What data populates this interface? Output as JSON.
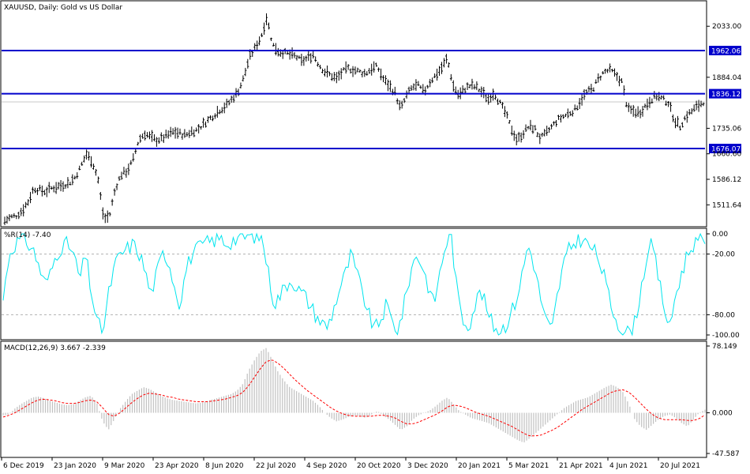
{
  "chart_data": [
    {
      "type": "line",
      "panel": "price",
      "title": "XAUUSD, Daily: Gold vs US Dollar",
      "instrument": "XAUUSD",
      "timeframe": "Daily",
      "description": "Gold vs US Dollar",
      "ylim": [
        1450,
        2105
      ],
      "ytick_labels": [
        "2033.00",
        "1884.04",
        "1735.06",
        "1660.60",
        "1586.12",
        "1511.64"
      ],
      "ytick_values": [
        2033.0,
        1884.04,
        1735.06,
        1660.6,
        1586.12,
        1511.64
      ],
      "horizontal_levels": [
        {
          "label": "1962.06",
          "value": 1962.06,
          "color": "#0000cc"
        },
        {
          "label": "1836.12",
          "value": 1836.12,
          "color": "#0000cc"
        },
        {
          "label": "1676.07",
          "value": 1676.07,
          "color": "#0000cc"
        }
      ],
      "last_price": 1812.0,
      "x_dates": [
        "6 Dec 2019",
        "23 Jan 2020",
        "9 Mar 2020",
        "23 Apr 2020",
        "8 Jun 2020",
        "22 Jul 2020",
        "4 Sep 2020",
        "20 Oct 2020",
        "3 Dec 2020",
        "20 Jan 2021",
        "5 Mar 2021",
        "21 Apr 2021",
        "4 Jun 2021",
        "20 Jul 2021"
      ],
      "close_path": [
        1465,
        1475,
        1480,
        1495,
        1520,
        1560,
        1555,
        1550,
        1560,
        1565,
        1570,
        1575,
        1590,
        1620,
        1660,
        1640,
        1590,
        1470,
        1480,
        1560,
        1600,
        1610,
        1640,
        1700,
        1720,
        1710,
        1700,
        1705,
        1715,
        1725,
        1720,
        1715,
        1725,
        1730,
        1745,
        1760,
        1775,
        1790,
        1800,
        1820,
        1840,
        1880,
        1940,
        1970,
        2000,
        2060,
        1980,
        1960,
        1955,
        1950,
        1945,
        1930,
        1940,
        1950,
        1920,
        1900,
        1890,
        1880,
        1900,
        1910,
        1905,
        1900,
        1895,
        1910,
        1915,
        1880,
        1860,
        1840,
        1790,
        1830,
        1855,
        1860,
        1840,
        1870,
        1890,
        1910,
        1940,
        1860,
        1830,
        1850,
        1860,
        1855,
        1840,
        1820,
        1840,
        1810,
        1780,
        1735,
        1700,
        1720,
        1740,
        1735,
        1705,
        1720,
        1740,
        1760,
        1770,
        1780,
        1790,
        1820,
        1840,
        1850,
        1880,
        1900,
        1905,
        1890,
        1870,
        1790,
        1785,
        1780,
        1800,
        1820,
        1830,
        1820,
        1810,
        1760,
        1740,
        1770,
        1785,
        1800,
        1812
      ],
      "series": [
        {
          "color": "#000000"
        }
      ]
    },
    {
      "type": "line",
      "panel": "williams_r",
      "title": "%R(14) -7.40",
      "indicator": "%R",
      "period": 14,
      "current_value": -7.4,
      "ylim": [
        -100,
        0
      ],
      "ytick_labels": [
        "0.00",
        "-20.00",
        "-80.00",
        "-100.00"
      ],
      "ytick_values": [
        0,
        -20,
        -80,
        -100
      ],
      "reference_lines": [
        -20,
        -80
      ],
      "values": [
        -65,
        -20,
        -10,
        -5,
        -8,
        -15,
        -30,
        -50,
        -40,
        -20,
        -12,
        -10,
        -22,
        -45,
        -20,
        -60,
        -90,
        -95,
        -55,
        -30,
        -20,
        -15,
        -10,
        -18,
        -35,
        -60,
        -40,
        -20,
        -25,
        -50,
        -70,
        -35,
        -20,
        -15,
        -10,
        -8,
        -6,
        -5,
        -10,
        -6,
        -4,
        -3,
        -2,
        -2,
        -5,
        -40,
        -70,
        -60,
        -50,
        -45,
        -55,
        -60,
        -70,
        -80,
        -88,
        -92,
        -75,
        -55,
        -40,
        -20,
        -40,
        -60,
        -80,
        -95,
        -85,
        -70,
        -88,
        -95,
        -70,
        -40,
        -20,
        -30,
        -50,
        -70,
        -40,
        -10,
        -2,
        -60,
        -85,
        -90,
        -70,
        -55,
        -75,
        -90,
        -95,
        -92,
        -80,
        -65,
        -40,
        -10,
        -30,
        -60,
        -85,
        -97,
        -60,
        -30,
        -15,
        -8,
        -5,
        -10,
        -15,
        -25,
        -45,
        -70,
        -85,
        -95,
        -98,
        -90,
        -60,
        -25,
        -10,
        -40,
        -70,
        -95,
        -60,
        -40,
        -20,
        -10,
        -8,
        -7.4
      ],
      "series": [
        {
          "color": "#00e5ee"
        }
      ]
    },
    {
      "type": "bar",
      "panel": "macd",
      "title": "MACD(12,26,9) 3.667 -2.339",
      "indicator": "MACD",
      "params": [
        12,
        26,
        9
      ],
      "macd_value": 3.667,
      "signal_value": -2.339,
      "ylim": [
        -47.587,
        78.149
      ],
      "ytick_labels": [
        "78.149",
        "0.000",
        "-47.587"
      ],
      "ytick_values": [
        78.149,
        0,
        -47.587
      ],
      "histogram": [
        -3,
        -2,
        5,
        10,
        14,
        18,
        19,
        17,
        14,
        12,
        10,
        9,
        10,
        14,
        18,
        20,
        12,
        -10,
        -20,
        -8,
        5,
        14,
        22,
        26,
        30,
        28,
        24,
        20,
        17,
        15,
        14,
        13,
        12,
        11,
        12,
        14,
        16,
        18,
        20,
        22,
        26,
        34,
        50,
        62,
        72,
        76,
        62,
        48,
        38,
        30,
        26,
        22,
        18,
        14,
        8,
        0,
        -6,
        -10,
        -8,
        -5,
        -3,
        -4,
        -6,
        -2,
        2,
        -3,
        -8,
        -14,
        -20,
        -16,
        -8,
        -3,
        0,
        3,
        8,
        14,
        18,
        10,
        2,
        -2,
        -6,
        -8,
        -10,
        -12,
        -16,
        -20,
        -24,
        -28,
        -32,
        -35,
        -30,
        -24,
        -18,
        -12,
        -6,
        0,
        6,
        10,
        14,
        16,
        18,
        22,
        26,
        30,
        33,
        30,
        24,
        10,
        -8,
        -16,
        -20,
        -14,
        -8,
        -4,
        -2,
        -6,
        -12,
        -16,
        -8,
        0,
        3.667
      ],
      "signal": [
        -5,
        -3,
        0,
        4,
        8,
        12,
        15,
        16,
        15,
        14,
        12,
        11,
        11,
        12,
        14,
        15,
        13,
        6,
        -2,
        -4,
        0,
        6,
        12,
        17,
        21,
        23,
        22,
        21,
        19,
        18,
        16,
        15,
        14,
        13,
        13,
        13,
        14,
        15,
        16,
        18,
        20,
        24,
        32,
        42,
        52,
        60,
        62,
        58,
        52,
        45,
        38,
        32,
        26,
        21,
        16,
        11,
        6,
        2,
        -1,
        -3,
        -4,
        -4,
        -4,
        -4,
        -3,
        -3,
        -4,
        -6,
        -10,
        -13,
        -13,
        -11,
        -8,
        -5,
        -2,
        2,
        7,
        9,
        8,
        6,
        3,
        0,
        -2,
        -4,
        -7,
        -10,
        -13,
        -16,
        -20,
        -24,
        -27,
        -27,
        -26,
        -23,
        -20,
        -16,
        -11,
        -6,
        -1,
        4,
        8,
        12,
        16,
        20,
        24,
        26,
        27,
        24,
        18,
        11,
        4,
        -2,
        -6,
        -8,
        -8,
        -8,
        -8,
        -9,
        -9,
        -7,
        -2.339
      ],
      "series": [
        {
          "color": "#c0c0c0"
        },
        {
          "color": "#ff0000"
        }
      ]
    }
  ],
  "styles": {
    "frame_color": "#000000",
    "grid_line_color": "#c8c8c8",
    "level_color": "#0000cc",
    "price_color": "#000000",
    "wr_color": "#00e5ee",
    "hist_color": "#c0c0c0",
    "signal_color": "#ff0000"
  }
}
